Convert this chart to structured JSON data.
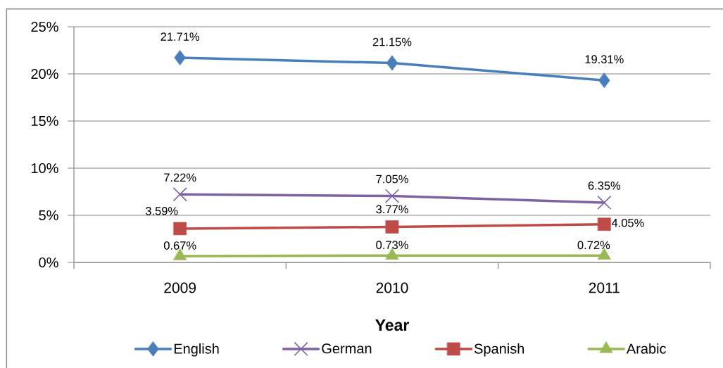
{
  "chart_data": {
    "type": "line",
    "xlabel": "Year",
    "categories": [
      "2009",
      "2010",
      "2011"
    ],
    "series": [
      {
        "name": "English",
        "color": "#4a7ebb",
        "marker": "diamond",
        "values": [
          21.71,
          21.15,
          19.31
        ],
        "value_labels": [
          "21.71%",
          "21.15%",
          "19.31%"
        ]
      },
      {
        "name": "German",
        "color": "#7f63a1",
        "marker": "cross",
        "values": [
          7.22,
          7.05,
          6.35
        ],
        "value_labels": [
          "7.22%",
          "7.05%",
          "6.35%"
        ]
      },
      {
        "name": "Spanish",
        "color": "#be4b48",
        "marker": "square",
        "values": [
          3.59,
          3.77,
          4.05
        ],
        "value_labels": [
          "3.59%",
          "3.77%",
          "4.05%"
        ]
      },
      {
        "name": "Arabic",
        "color": "#98b954",
        "marker": "triangle",
        "values": [
          0.67,
          0.73,
          0.72
        ],
        "value_labels": [
          "0.67%",
          "0.73%",
          "0.72%"
        ]
      }
    ],
    "ylim": [
      0,
      25
    ],
    "yticks": [
      {
        "value": 0,
        "label": "0%"
      },
      {
        "value": 5,
        "label": "5%"
      },
      {
        "value": 10,
        "label": "10%"
      },
      {
        "value": 15,
        "label": "15%"
      },
      {
        "value": 20,
        "label": "20%"
      },
      {
        "value": 25,
        "label": "25%"
      }
    ],
    "grid": "y",
    "legend": "bottom",
    "line_style": "solid"
  }
}
